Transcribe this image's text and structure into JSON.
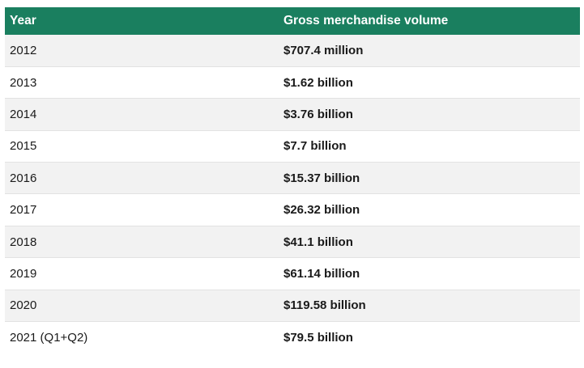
{
  "table": {
    "headers": {
      "year": "Year",
      "value": "Gross merchandise volume"
    },
    "header_color": "#1a7f5f",
    "rows": [
      {
        "year": "2012",
        "value": "$707.4 million"
      },
      {
        "year": "2013",
        "value": "$1.62 billion"
      },
      {
        "year": "2014",
        "value": "$3.76 billion"
      },
      {
        "year": "2015",
        "value": "$7.7 billion"
      },
      {
        "year": "2016",
        "value": "$15.37 billion"
      },
      {
        "year": "2017",
        "value": "$26.32 billion"
      },
      {
        "year": "2018",
        "value": "$41.1 billion"
      },
      {
        "year": "2019",
        "value": "$61.14 billion"
      },
      {
        "year": "2020",
        "value": "$119.58 billion"
      },
      {
        "year": "2021 (Q1+Q2)",
        "value": "$79.5 billion"
      }
    ]
  }
}
